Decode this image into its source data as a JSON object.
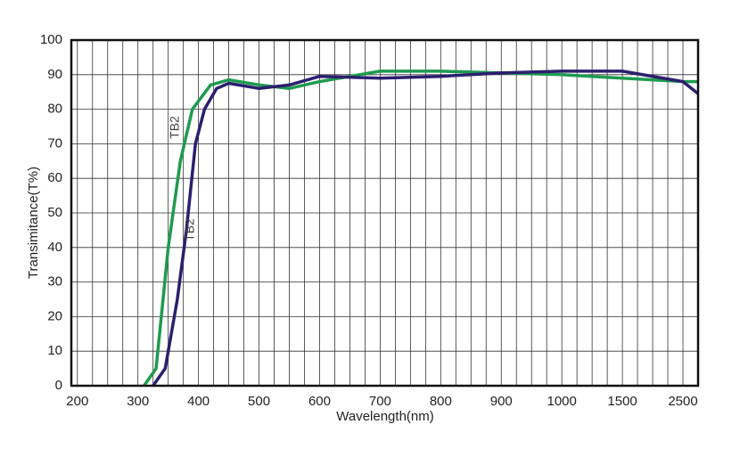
{
  "chart_data": {
    "type": "line",
    "x_label": "Wavelength(nm)",
    "y_label": "Transimitance(T%)",
    "xlim": [
      190,
      2750
    ],
    "xticks": [
      200,
      300,
      400,
      500,
      600,
      700,
      800,
      900,
      1000,
      1500,
      2500
    ],
    "ylim": [
      0,
      100
    ],
    "yticks": [
      0,
      10,
      20,
      30,
      40,
      50,
      60,
      70,
      80,
      90,
      100
    ],
    "grid": true,
    "series": [
      {
        "name": "TB2",
        "color": "#1f9a4f",
        "x": [
          310,
          330,
          350,
          370,
          390,
          420,
          450,
          500,
          550,
          600,
          650,
          700,
          800,
          900,
          1000,
          1500,
          2500,
          2750
        ],
        "values": [
          0,
          5,
          40,
          65,
          80,
          87,
          88.5,
          87,
          86,
          88,
          89.5,
          91,
          91,
          90.5,
          90,
          89,
          88,
          88
        ]
      },
      {
        "name": "TB2",
        "color": "#2b1f6e",
        "x": [
          325,
          345,
          365,
          380,
          395,
          410,
          430,
          450,
          500,
          550,
          600,
          700,
          800,
          900,
          1000,
          1500,
          2500,
          2750
        ],
        "values": [
          0,
          5,
          25,
          45,
          70,
          80,
          86,
          87.5,
          86,
          87,
          89.5,
          89,
          89.5,
          90.5,
          91,
          91,
          88,
          84.5
        ]
      }
    ]
  }
}
